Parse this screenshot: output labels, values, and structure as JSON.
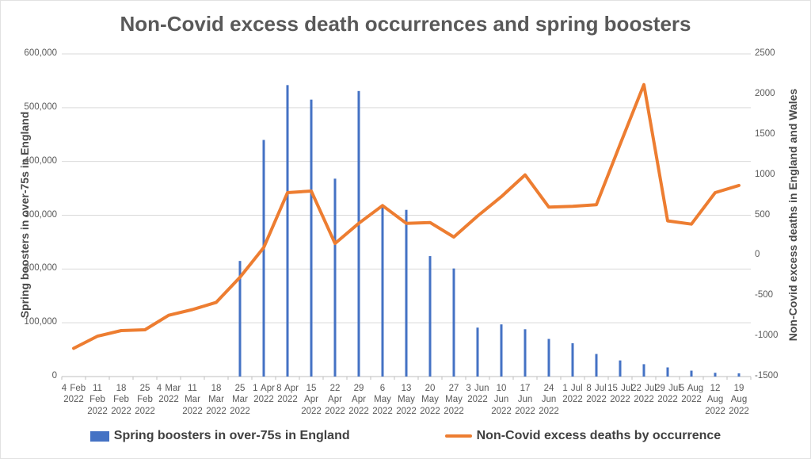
{
  "title": "Non-Covid excess death occurrences and spring boosters",
  "chart_data": {
    "type": "bar",
    "subtype": "combo-bar-line-dual-axis",
    "categories": [
      "4 Feb 2022",
      "11 Feb 2022",
      "18 Feb 2022",
      "25 Feb 2022",
      "4 Mar 2022",
      "11 Mar 2022",
      "18 Mar 2022",
      "25 Mar 2022",
      "1 Apr 2022",
      "8 Apr 2022",
      "15 Apr 2022",
      "22 Apr 2022",
      "29 Apr 2022",
      "6 May 2022",
      "13 May 2022",
      "20 May 2022",
      "27 May 2022",
      "3 Jun 2022",
      "10 Jun 2022",
      "17 Jun 2022",
      "24 Jun 2022",
      "1 Jul 2022",
      "8 Jul 2022",
      "15 Jul 2022",
      "22 Jul 2022",
      "29 Jul 2022",
      "5 Aug 2022",
      "12 Aug 2022",
      "19 Aug 2022"
    ],
    "series": [
      {
        "name": "Spring boosters in over-75s in England",
        "type": "bar",
        "axis": "left",
        "color": "#4472C4",
        "values": [
          null,
          null,
          null,
          null,
          null,
          null,
          null,
          215000,
          440000,
          542000,
          515000,
          368000,
          531000,
          318000,
          310000,
          224000,
          201000,
          91000,
          97000,
          88000,
          70000,
          62000,
          42000,
          30000,
          23000,
          17000,
          11000,
          7000,
          6000
        ]
      },
      {
        "name": "Non-Covid excess deaths by occurrence",
        "type": "line",
        "axis": "right",
        "color": "#ED7D31",
        "values": [
          -1150,
          -1000,
          -930,
          -920,
          -740,
          -670,
          -580,
          -270,
          100,
          780,
          800,
          150,
          400,
          620,
          400,
          410,
          230,
          490,
          730,
          1000,
          600,
          610,
          630,
          1380,
          2120,
          430,
          390,
          780,
          870
        ]
      }
    ],
    "left_axis": {
      "title": "Spring boosters in over-75s in England",
      "min": 0,
      "max": 600000,
      "step": 100000
    },
    "right_axis": {
      "title": "Non-Covid excess deaths in England and Wales",
      "min": -1500,
      "max": 2500,
      "step": 500
    },
    "grid": true,
    "legend_position": "bottom",
    "colors": {
      "gridline": "#D9D9D9",
      "axis_line": "#BFBFBF",
      "text": "#595959"
    }
  }
}
